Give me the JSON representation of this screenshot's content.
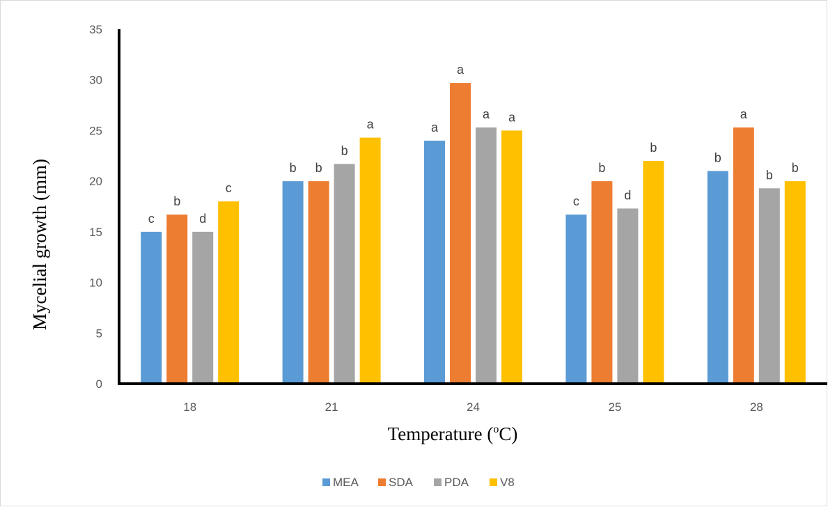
{
  "chart_data": {
    "type": "bar",
    "title": "",
    "xlabel": "Temperature (",
    "xlabel_sup": "o",
    "xlabel_suffix": "C)",
    "ylabel": "Mycelial growth (mm)",
    "ylim": [
      0,
      35
    ],
    "yticks": [
      "0",
      "5",
      "10",
      "15",
      "20",
      "25",
      "30",
      "35"
    ],
    "grid": false,
    "legend_position": "bottom",
    "categories": [
      "18",
      "21",
      "24",
      "25",
      "28"
    ],
    "series": [
      {
        "name": "MEA",
        "color": "#5B9BD5",
        "values": [
          15.0,
          20.0,
          24.0,
          16.7,
          21.0
        ],
        "labels": [
          "c",
          "b",
          "a",
          "c",
          "b"
        ]
      },
      {
        "name": "SDA",
        "color": "#ED7D31",
        "values": [
          16.7,
          20.0,
          29.7,
          20.0,
          25.3
        ],
        "labels": [
          "b",
          "b",
          "a",
          "b",
          "a"
        ]
      },
      {
        "name": "PDA",
        "color": "#A5A5A5",
        "values": [
          15.0,
          21.7,
          25.3,
          17.3,
          19.3
        ],
        "labels": [
          "d",
          "b",
          "a",
          "d",
          "b"
        ]
      },
      {
        "name": "V8",
        "color": "#FFC000",
        "values": [
          18.0,
          24.3,
          25.0,
          22.0,
          20.0
        ],
        "labels": [
          "c",
          "a",
          "a",
          "b",
          "b"
        ]
      }
    ]
  }
}
